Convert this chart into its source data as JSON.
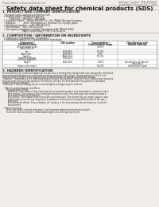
{
  "bg_color": "#f0ede8",
  "header_left": "Product Name: Lithium Ion Battery Cell",
  "header_right_line1": "Substance number: SDS-LIB-00010",
  "header_right_line2": "Established / Revision: Dec.7.2016",
  "title": "Safety data sheet for chemical products (SDS)",
  "section1_title": "1. PRODUCT AND COMPANY IDENTIFICATION",
  "section1_lines": [
    "  • Product name: Lithium Ion Battery Cell",
    "  • Product code: Cylindrical-type cell",
    "         (18650SU, (18185SU, (18185A)",
    "  • Company name:    Sanyo Electric Co., Ltd., Mobile Energy Company",
    "  • Address:           2001  Kamitakatsuji, Sumoto-City, Hyogo, Japan",
    "  • Telephone number:   +81-799-26-4111",
    "  • Fax number:   +81-799-26-4120",
    "  • Emergency telephone number (daytime): +81-799-26-2962",
    "                            (Night and holiday): +81-799-26-4101"
  ],
  "section2_title": "2. COMPOSITION / INFORMATION ON INGREDIENTS",
  "section2_intro": "  • Substance or preparation: Preparation",
  "section2_sub": "  • Information about the chemical nature of product:",
  "table_col_headers_row1": [
    "Component /",
    "CAS number",
    "Concentration /",
    "Classification and"
  ],
  "table_col_headers_row2": [
    "Chemical name",
    "",
    "Concentration range",
    "hazard labeling"
  ],
  "table_rows": [
    [
      "Lithium cobalt oxide\n(LiMn/CoO2(x))",
      "-",
      "30-60%",
      ""
    ],
    [
      "Iron",
      "7439-89-6",
      "10-20%",
      ""
    ],
    [
      "Aluminum",
      "7429-90-5",
      "2-5%",
      ""
    ],
    [
      "Graphite\n(total in graphite)\n(artificial graphite)",
      "77630-43-5\n7782-42-5",
      "10-25%",
      ""
    ],
    [
      "Copper",
      "7440-50-8",
      "5-15%",
      "Sensitization of the skin\ngroup No.2"
    ],
    [
      "Organic electrolyte",
      "-",
      "10-20%",
      "Inflammable liquid"
    ]
  ],
  "section3_title": "3. HAZARDS IDENTIFICATION",
  "section3_lines": [
    "For the battery cell, chemical substances are stored in a hermetically sealed metal case, designed to withstand",
    "temperatures and pressures-combinations during normal use. As a result, during normal use, there is no",
    "physical danger of ignition or explosion and therefore danger of hazardous materials leakage.",
    "  However, if exposed to a fire, added mechanical shocks, decomposed, ambient electric without any measures,",
    "the gas release vent can be operated. The battery cell case will be breached of fire-patterns. hazardous",
    "materials may be released.",
    "  Moreover, if heated strongly by the surrounding fire, solid gas may be emitted.",
    "",
    "  • Most important hazard and effects:",
    "       Human health effects:",
    "         Inhalation: The release of the electrolyte has an anesthesia action and stimulates in respiratory tract.",
    "         Skin contact: The release of the electrolyte stimulates a skin. The electrolyte skin contact causes a",
    "         sore and stimulation on the skin.",
    "         Eye contact: The release of the electrolyte stimulates eyes. The electrolyte eye contact causes a sore",
    "         and stimulation on the eye. Especially, a substance that causes a strong inflammation of the eye is",
    "         contained.",
    "         Environmental effects: Since a battery cell remains in the environment, do not throw out it into the",
    "         environment.",
    "",
    "  • Specific hazards:",
    "       If the electrolyte contacts with water, it will generate detrimental hydrogen fluoride.",
    "       Since the lead electrolyte is inflammable liquid, do not bring close to fire."
  ],
  "line_color": "#999999",
  "text_color": "#222222",
  "header_color": "#666666",
  "title_color": "#111111"
}
